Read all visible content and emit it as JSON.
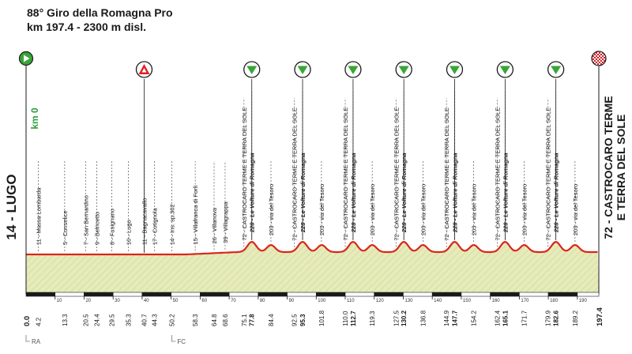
{
  "header": {
    "title": "88° Giro della Romagna Pro",
    "subtitle": "km 197.4 - 2300 m disl."
  },
  "start": {
    "name": "14 - LUGO",
    "km0_label": "km 0"
  },
  "finish": {
    "name_line1": "72 - CASTROCARO TERME",
    "name_line2": "E TERRA DEL SOLE"
  },
  "waypoints": [
    {
      "km": 4.2,
      "label": "11 - Massa Lombarda"
    },
    {
      "km": 13.3,
      "label": "5 - Conselice"
    },
    {
      "km": 20.5,
      "label": "7 - San Bernardino"
    },
    {
      "km": 24.4,
      "label": "9 - Belricetto"
    },
    {
      "km": 29.5,
      "label": "8 - Fusignano"
    },
    {
      "km": 35.3,
      "label": "10 - Lugo"
    },
    {
      "km": 40.7,
      "label": "11 - Bagnacavallo"
    },
    {
      "km": 44.3,
      "label": "17 - Cotignola"
    },
    {
      "km": 50.2,
      "label": "14 - Ins. sp.302"
    },
    {
      "km": 58.3,
      "label": "15 - Villafranca di Forlì"
    },
    {
      "km": 64.8,
      "label": "26 - Villanova"
    },
    {
      "km": 68.6,
      "label": "39 - Villagrappa"
    },
    {
      "km": 75.1,
      "label": "72 - CASTROCARO TERME E TERRA DEL SOLE"
    },
    {
      "km": 77.8,
      "label": "228 - Le Volture di Romagna",
      "bold": true
    },
    {
      "km": 84.4,
      "label": "203 - via del Tesoro"
    },
    {
      "km": 92.5,
      "label": "72 - CASTROCARO TERME E TERRA DEL SOLE"
    },
    {
      "km": 95.3,
      "label": "228 - Le Volture di Romagna",
      "bold": true
    },
    {
      "km": 101.8,
      "label": "203 - via del Tesoro"
    },
    {
      "km": 110.0,
      "label": "72 - CASTROCARO TERME E TERRA DEL SOLE"
    },
    {
      "km": 112.7,
      "label": "228 - Le Volture di Romagna",
      "bold": true
    },
    {
      "km": 119.3,
      "label": "203 - via del Tesoro"
    },
    {
      "km": 127.5,
      "label": "72 - CASTROCARO TERME E TERRA DEL SOLE"
    },
    {
      "km": 130.2,
      "label": "228 - Le Volture di Romagna",
      "bold": true
    },
    {
      "km": 136.8,
      "label": "203 - via del Tesoro"
    },
    {
      "km": 144.9,
      "label": "72 - CASTROCARO TERME E TERRA DEL SOLE"
    },
    {
      "km": 147.7,
      "label": "228 - Le Volture di Romagna",
      "bold": true
    },
    {
      "km": 154.2,
      "label": "203 - via del Tesoro"
    },
    {
      "km": 162.4,
      "label": "72 - CASTROCARO TERME E TERRA DEL SOLE"
    },
    {
      "km": 165.1,
      "label": "228 - Le Volture di Romagna",
      "bold": true
    },
    {
      "km": 171.7,
      "label": "203 - via del Tesoro"
    },
    {
      "km": 179.9,
      "label": "72 - CASTROCARO TERME E TERRA DEL SOLE"
    },
    {
      "km": 182.6,
      "label": "228 - Le Volture di Romagna",
      "bold": true
    },
    {
      "km": 189.2,
      "label": "203 - via del Tesoro"
    }
  ],
  "climb_markers_km": [
    77.8,
    95.3,
    112.7,
    130.2,
    147.7,
    165.1,
    182.6
  ],
  "intermediate_sprint": {
    "km": 40.7,
    "icon": "triangle-warning-icon"
  },
  "scale_ticks": [
    10,
    20,
    30,
    40,
    50,
    60,
    70,
    80,
    90,
    100,
    110,
    120,
    130,
    140,
    150,
    160,
    170,
    180,
    190
  ],
  "total_km": 197.4,
  "start_km": 0.0,
  "road_notes": [
    {
      "km": 0.0,
      "text": "RA"
    },
    {
      "km": 50.2,
      "text": "FC"
    }
  ],
  "colors": {
    "profile_fill": "#e6ebba",
    "profile_line": "#d9261c",
    "climb_green": "#3aa536",
    "start_green": "#3aa536",
    "sprint_red": "#e31e24",
    "km0_green": "#2e9e3e"
  }
}
